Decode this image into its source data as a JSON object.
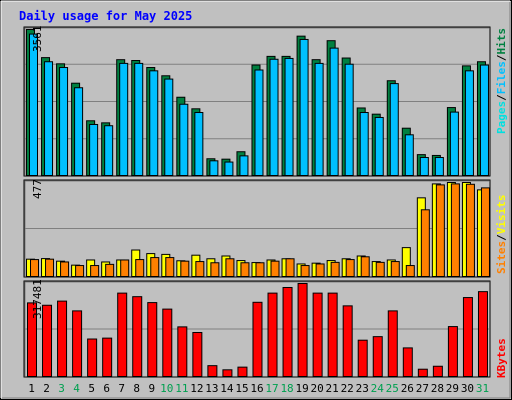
{
  "title": "Daily usage for May 2025",
  "chart_data": [
    {
      "type": "bar",
      "panel": "hits",
      "ylabel_max": "3561",
      "ylim": [
        0,
        3561
      ],
      "categories": [
        "1",
        "2",
        "3",
        "4",
        "5",
        "6",
        "7",
        "8",
        "9",
        "10",
        "11",
        "12",
        "13",
        "14",
        "15",
        "16",
        "17",
        "18",
        "19",
        "20",
        "21",
        "22",
        "23",
        "24",
        "25",
        "26",
        "27",
        "28",
        "29",
        "30",
        "31"
      ],
      "legend": [
        "Pages",
        "/",
        "Files",
        "/",
        "Hits"
      ],
      "series": [
        {
          "name": "Hits",
          "values": [
            3561,
            2880,
            2730,
            2260,
            1350,
            1300,
            2830,
            2810,
            2640,
            2440,
            1920,
            1640,
            430,
            420,
            600,
            2700,
            2910,
            2910,
            3400,
            2830,
            3290,
            2870,
            1660,
            1510,
            2320,
            1170,
            530,
            510,
            1670,
            2680,
            2780
          ]
        },
        {
          "name": "Files",
          "values": [
            3450,
            2780,
            2640,
            2150,
            1260,
            1230,
            2740,
            2740,
            2560,
            2360,
            1750,
            1550,
            380,
            350,
            500,
            2580,
            2840,
            2860,
            3320,
            2740,
            3110,
            2720,
            1550,
            1430,
            2250,
            1010,
            460,
            460,
            1560,
            2560,
            2700
          ]
        },
        {
          "name": "Pages",
          "values": [
            0,
            0,
            0,
            0,
            0,
            0,
            0,
            0,
            0,
            0,
            0,
            0,
            0,
            0,
            0,
            0,
            0,
            0,
            0,
            0,
            0,
            0,
            0,
            0,
            0,
            0,
            0,
            0,
            0,
            0,
            0
          ]
        }
      ]
    },
    {
      "type": "bar",
      "panel": "visits",
      "ylabel_max": "477",
      "ylim": [
        0,
        477
      ],
      "categories": [
        "1",
        "2",
        "3",
        "4",
        "5",
        "6",
        "7",
        "8",
        "9",
        "10",
        "11",
        "12",
        "13",
        "14",
        "15",
        "16",
        "17",
        "18",
        "19",
        "20",
        "21",
        "22",
        "23",
        "24",
        "25",
        "26",
        "27",
        "28",
        "29",
        "30",
        "31"
      ],
      "legend": [
        "Sites",
        "/",
        "Visits"
      ],
      "series": [
        {
          "name": "Visits",
          "values": [
            92,
            95,
            82,
            62,
            88,
            78,
            88,
            138,
            120,
            116,
            84,
            112,
            94,
            108,
            85,
            75,
            88,
            94,
            68,
            72,
            85,
            94,
            108,
            80,
            88,
            150,
            400,
            470,
            477,
            477,
            440
          ]
        },
        {
          "name": "Sites",
          "values": [
            90,
            92,
            78,
            60,
            60,
            66,
            88,
            90,
            100,
            100,
            82,
            80,
            74,
            94,
            74,
            74,
            82,
            94,
            60,
            68,
            76,
            90,
            104,
            76,
            80,
            60,
            340,
            465,
            470,
            468,
            450
          ]
        }
      ]
    },
    {
      "type": "bar",
      "panel": "kbytes",
      "ylabel_max": "317481",
      "ylim": [
        0,
        317481
      ],
      "categories": [
        "1",
        "2",
        "3",
        "4",
        "5",
        "6",
        "7",
        "8",
        "9",
        "10",
        "11",
        "12",
        "13",
        "14",
        "15",
        "16",
        "17",
        "18",
        "19",
        "20",
        "21",
        "22",
        "23",
        "24",
        "25",
        "26",
        "27",
        "28",
        "29",
        "30",
        "31"
      ],
      "legend": [
        "KBytes"
      ],
      "series": [
        {
          "name": "KBytes",
          "values": [
            252000,
            244000,
            258000,
            225000,
            130000,
            133000,
            285000,
            273000,
            253000,
            231000,
            171000,
            152000,
            40000,
            26000,
            35000,
            254000,
            285000,
            304000,
            317481,
            285000,
            285000,
            242000,
            126000,
            138000,
            225000,
            100000,
            28000,
            38000,
            172000,
            270000,
            290000
          ]
        }
      ]
    }
  ],
  "colors": {
    "hits": "#008040",
    "files": "#00c0ff",
    "pages": "#00e0e0",
    "visits": "#ffff00",
    "sites": "#ff8000",
    "kbytes": "#ff0000",
    "title": "#0000ff",
    "background": "#c0c0c0",
    "panel_bg": "#ffffff",
    "weekend_label": "#00a050"
  },
  "weekend_days": [
    "3",
    "4",
    "10",
    "11",
    "17",
    "18",
    "24",
    "25",
    "31"
  ]
}
